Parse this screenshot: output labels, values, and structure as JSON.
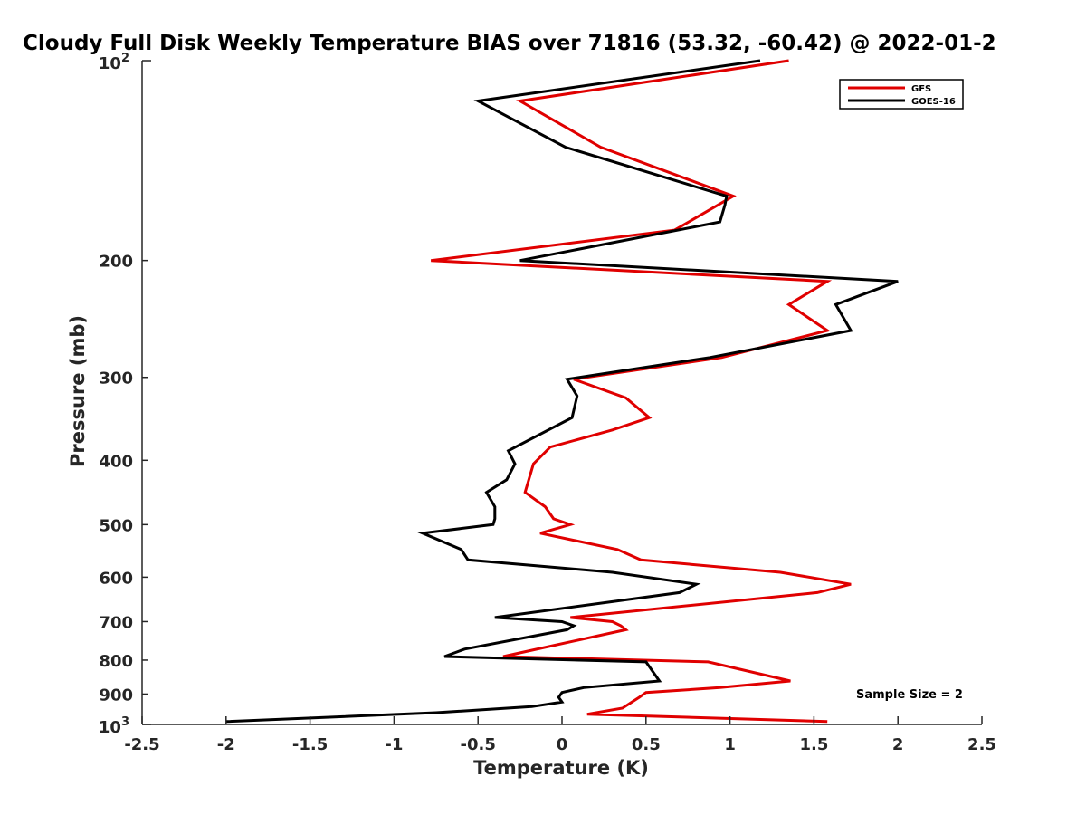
{
  "chart_data": {
    "type": "line",
    "title": "Cloudy Full Disk Weekly Temperature BIAS over 71816 (53.32, -60.42) @ 2022-01-2",
    "xlabel": "Temperature (K)",
    "ylabel": "Pressure (mb)",
    "xlim": [
      -2.5,
      2.5
    ],
    "ylim": [
      100,
      1000
    ],
    "yscale": "log",
    "y_reversed": true,
    "x_ticks": [
      -2.5,
      -2,
      -1.5,
      -1,
      -0.5,
      0,
      0.5,
      1,
      1.5,
      2,
      2.5
    ],
    "x_tick_labels": [
      "-2.5",
      "-2",
      "-1.5",
      "-1",
      "-0.5",
      "0",
      "0.5",
      "1",
      "1.5",
      "2",
      "2.5"
    ],
    "y_ticks": [
      200,
      300,
      400,
      500,
      600,
      700,
      800,
      900
    ],
    "y_tick_labels": [
      "200",
      "300",
      "400",
      "500",
      "600",
      "700",
      "800",
      "900"
    ],
    "y_top_label": {
      "base": "10",
      "exp": "2"
    },
    "y_bottom_label": {
      "base": "10",
      "exp": "3"
    },
    "grid": false,
    "legend_position": "top-right",
    "annotation": "Sample Size = 2",
    "series": [
      {
        "name": "GFS",
        "color": "#e00000",
        "points": [
          {
            "x": 1.35,
            "y": 100
          },
          {
            "x": -0.25,
            "y": 115
          },
          {
            "x": 0.23,
            "y": 135
          },
          {
            "x": 1.02,
            "y": 160
          },
          {
            "x": 0.67,
            "y": 180
          },
          {
            "x": -0.78,
            "y": 200
          },
          {
            "x": 1.58,
            "y": 215
          },
          {
            "x": 1.35,
            "y": 233
          },
          {
            "x": 1.58,
            "y": 255
          },
          {
            "x": 0.95,
            "y": 280
          },
          {
            "x": 0.07,
            "y": 302
          },
          {
            "x": 0.38,
            "y": 322
          },
          {
            "x": 0.52,
            "y": 345
          },
          {
            "x": 0.3,
            "y": 360
          },
          {
            "x": -0.07,
            "y": 382
          },
          {
            "x": -0.17,
            "y": 405
          },
          {
            "x": -0.22,
            "y": 447
          },
          {
            "x": -0.1,
            "y": 470
          },
          {
            "x": -0.05,
            "y": 490
          },
          {
            "x": 0.05,
            "y": 500
          },
          {
            "x": -0.13,
            "y": 515
          },
          {
            "x": 0.33,
            "y": 545
          },
          {
            "x": 0.47,
            "y": 565
          },
          {
            "x": 1.3,
            "y": 590
          },
          {
            "x": 1.72,
            "y": 615
          },
          {
            "x": 1.52,
            "y": 633
          },
          {
            "x": 0.05,
            "y": 690
          },
          {
            "x": 0.3,
            "y": 700
          },
          {
            "x": 0.35,
            "y": 710
          },
          {
            "x": 0.38,
            "y": 720
          },
          {
            "x": -0.2,
            "y": 775
          },
          {
            "x": -0.35,
            "y": 790
          },
          {
            "x": 0.87,
            "y": 805
          },
          {
            "x": 1.36,
            "y": 860
          },
          {
            "x": 0.94,
            "y": 880
          },
          {
            "x": 0.5,
            "y": 895
          },
          {
            "x": 0.46,
            "y": 910
          },
          {
            "x": 0.36,
            "y": 945
          },
          {
            "x": 0.15,
            "y": 965
          },
          {
            "x": 1.58,
            "y": 990
          }
        ]
      },
      {
        "name": "GOES-16",
        "color": "#000000",
        "points": [
          {
            "x": 1.18,
            "y": 100
          },
          {
            "x": -0.5,
            "y": 115
          },
          {
            "x": 0.02,
            "y": 135
          },
          {
            "x": 0.98,
            "y": 160
          },
          {
            "x": 0.97,
            "y": 165
          },
          {
            "x": 0.94,
            "y": 175
          },
          {
            "x": -0.25,
            "y": 200
          },
          {
            "x": 2.0,
            "y": 215
          },
          {
            "x": 1.63,
            "y": 233
          },
          {
            "x": 1.72,
            "y": 255
          },
          {
            "x": 0.88,
            "y": 280
          },
          {
            "x": 0.03,
            "y": 302
          },
          {
            "x": 0.09,
            "y": 320
          },
          {
            "x": 0.06,
            "y": 345
          },
          {
            "x": -0.32,
            "y": 387
          },
          {
            "x": -0.28,
            "y": 405
          },
          {
            "x": -0.33,
            "y": 428
          },
          {
            "x": -0.45,
            "y": 447
          },
          {
            "x": -0.4,
            "y": 470
          },
          {
            "x": -0.4,
            "y": 490
          },
          {
            "x": -0.41,
            "y": 500
          },
          {
            "x": -0.83,
            "y": 515
          },
          {
            "x": -0.6,
            "y": 545
          },
          {
            "x": -0.56,
            "y": 565
          },
          {
            "x": 0.3,
            "y": 590
          },
          {
            "x": 0.8,
            "y": 615
          },
          {
            "x": 0.7,
            "y": 633
          },
          {
            "x": -0.4,
            "y": 690
          },
          {
            "x": 0.0,
            "y": 700
          },
          {
            "x": 0.07,
            "y": 710
          },
          {
            "x": 0.03,
            "y": 720
          },
          {
            "x": -0.58,
            "y": 770
          },
          {
            "x": -0.7,
            "y": 790
          },
          {
            "x": 0.5,
            "y": 805
          },
          {
            "x": 0.58,
            "y": 860
          },
          {
            "x": 0.13,
            "y": 880
          },
          {
            "x": 0.0,
            "y": 895
          },
          {
            "x": -0.02,
            "y": 910
          },
          {
            "x": 0.0,
            "y": 925
          },
          {
            "x": -0.18,
            "y": 940
          },
          {
            "x": -0.75,
            "y": 960
          },
          {
            "x": -2.0,
            "y": 990
          }
        ]
      }
    ]
  }
}
